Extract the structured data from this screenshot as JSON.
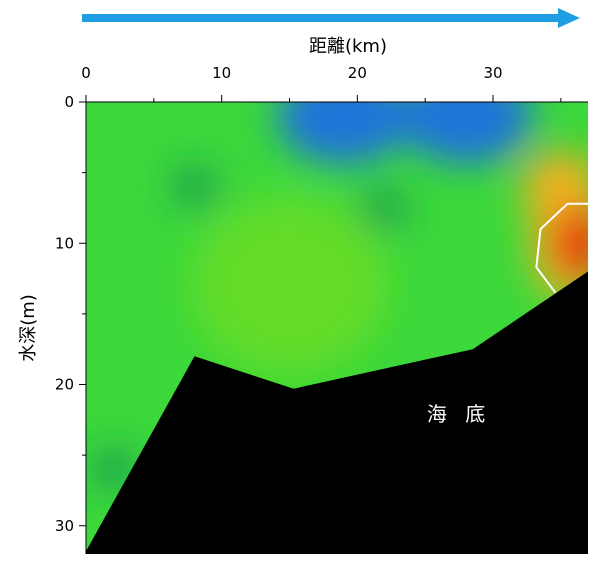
{
  "chart_data": {
    "type": "heatmap",
    "title": "",
    "xlabel": "距離(km)",
    "ylabel": "水深(m)",
    "xlim": [
      0,
      37
    ],
    "ylim": [
      0,
      32
    ],
    "y_inverted": true,
    "x_axis_position": "top",
    "x_ticks": [
      0,
      10,
      20,
      30
    ],
    "y_ticks": [
      0,
      10,
      20,
      30
    ],
    "direction_arrow": "left-to-right above x axis",
    "colors": {
      "arrow": "#1e9fe3",
      "seabed": "#000000",
      "low": "#1f6fe0",
      "mid": "#3cd83c",
      "high": "#e8200a",
      "contour": "#ffffff"
    },
    "seabed_profile": {
      "x": [
        0,
        8,
        15.3,
        28.5,
        37
      ],
      "y": [
        31.8,
        18,
        20.3,
        17.5,
        12
      ]
    },
    "contour_line": {
      "x": [
        37,
        35.5,
        33.5,
        33.2,
        34.6
      ],
      "y": [
        7.2,
        7.2,
        9,
        11.7,
        13.5
      ]
    },
    "blobs": [
      {
        "x": 19,
        "y": 1,
        "level": "low"
      },
      {
        "x": 28,
        "y": 1,
        "level": "low"
      },
      {
        "x": 36,
        "y": 10,
        "level": "high"
      },
      {
        "x": 35,
        "y": 6,
        "level": "mid-high"
      },
      {
        "x": 8,
        "y": 6,
        "level": "mid-low"
      },
      {
        "x": 22,
        "y": 7.5,
        "level": "mid-low"
      },
      {
        "x": 2,
        "y": 26,
        "level": "mid-low"
      },
      {
        "x": 15,
        "y": 13,
        "level": "mid"
      }
    ],
    "annotations": [
      {
        "text": "海 底",
        "x": 27.5,
        "y": 22.6
      }
    ]
  }
}
